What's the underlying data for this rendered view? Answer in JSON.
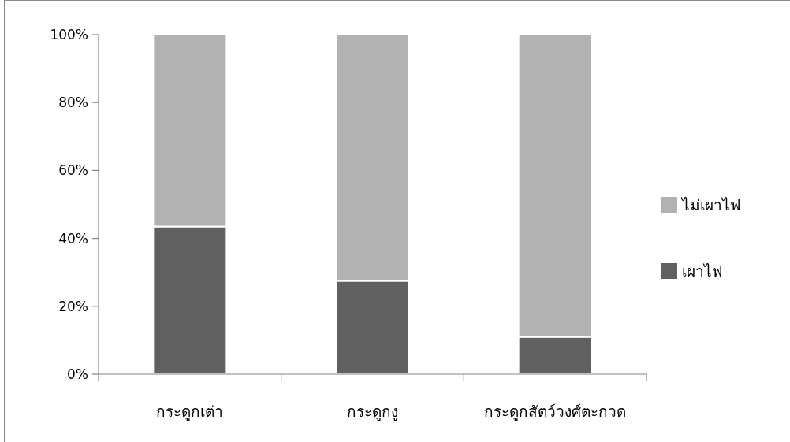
{
  "chart_data": {
    "type": "bar",
    "stacked": true,
    "legend": "right",
    "categories": [
      "กระดูกเต่า",
      "กระดูกงู",
      "กระดูกสัตว์วงศ์ตะกวด"
    ],
    "series": [
      {
        "name": "เผาไฟ",
        "color": "#606060",
        "values": [
          43.5,
          27.5,
          11
        ]
      },
      {
        "name": "ไม่เผาไฟ",
        "color": "#b2b2b2",
        "values": [
          56.5,
          72.5,
          89
        ]
      }
    ],
    "ylim": [
      0,
      100
    ],
    "yticks": [
      {
        "value": 0,
        "label": "0%"
      },
      {
        "value": 20,
        "label": "20%"
      },
      {
        "value": 40,
        "label": "40%"
      },
      {
        "value": 60,
        "label": "60%"
      },
      {
        "value": 80,
        "label": "80%"
      },
      {
        "value": 100,
        "label": "100%"
      }
    ]
  }
}
